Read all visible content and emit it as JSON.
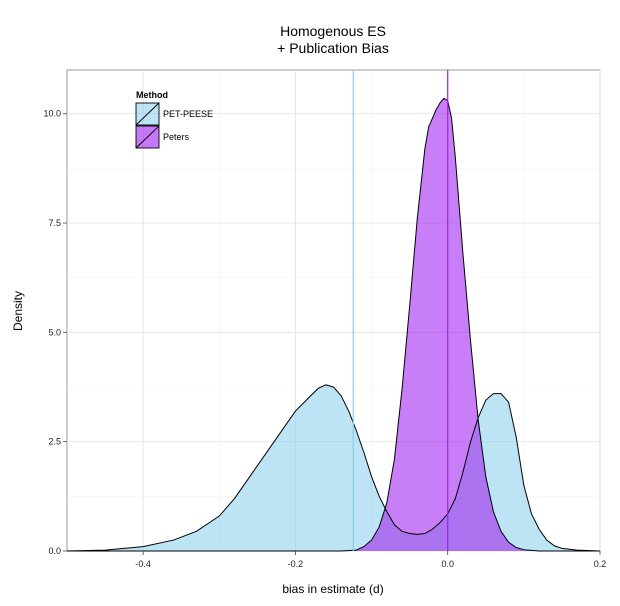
{
  "chart_data": {
    "type": "area",
    "title": "Homogenous ES\n+ Publication Bias",
    "xlabel": "bias in estimate (d)",
    "ylabel": "Density",
    "xlim": [
      -0.5,
      0.2
    ],
    "ylim": [
      0,
      11
    ],
    "x_ticks": [
      -0.4,
      -0.2,
      0.0,
      0.2
    ],
    "x_tick_labels": [
      "-0.4",
      "-0.2",
      "0.0",
      "0.2"
    ],
    "y_ticks": [
      0,
      2.5,
      5,
      7.5,
      10
    ],
    "y_tick_labels": [
      "0.0",
      "2.5",
      "5.0",
      "7.5",
      "10.0"
    ],
    "grid": true,
    "legend": {
      "title": "Method",
      "position": "top-left"
    },
    "series": [
      {
        "name": "PET-PEESE",
        "color": "#87ceeb",
        "mean_line": -0.124,
        "x": [
          -0.5,
          -0.45,
          -0.4,
          -0.36,
          -0.33,
          -0.3,
          -0.28,
          -0.26,
          -0.24,
          -0.22,
          -0.2,
          -0.18,
          -0.17,
          -0.16,
          -0.15,
          -0.14,
          -0.13,
          -0.12,
          -0.11,
          -0.1,
          -0.09,
          -0.08,
          -0.07,
          -0.06,
          -0.05,
          -0.04,
          -0.03,
          -0.02,
          -0.01,
          0.0,
          0.01,
          0.02,
          0.03,
          0.04,
          0.05,
          0.06,
          0.07,
          0.08,
          0.09,
          0.1,
          0.11,
          0.12,
          0.13,
          0.14,
          0.15,
          0.17,
          0.2
        ],
        "y": [
          0.0,
          0.02,
          0.1,
          0.25,
          0.45,
          0.8,
          1.2,
          1.7,
          2.2,
          2.7,
          3.2,
          3.55,
          3.72,
          3.8,
          3.75,
          3.55,
          3.2,
          2.75,
          2.25,
          1.7,
          1.25,
          0.9,
          0.6,
          0.45,
          0.4,
          0.38,
          0.4,
          0.5,
          0.65,
          0.85,
          1.2,
          1.8,
          2.5,
          3.05,
          3.45,
          3.6,
          3.6,
          3.4,
          2.6,
          1.5,
          0.85,
          0.5,
          0.25,
          0.12,
          0.06,
          0.02,
          0.0
        ]
      },
      {
        "name": "Peters",
        "color": "#a020f0",
        "mean_line": 0.0,
        "x": [
          -0.5,
          -0.14,
          -0.12,
          -0.11,
          -0.1,
          -0.09,
          -0.08,
          -0.07,
          -0.06,
          -0.05,
          -0.04,
          -0.03,
          -0.025,
          -0.02,
          -0.015,
          -0.01,
          -0.005,
          0.0,
          0.005,
          0.01,
          0.015,
          0.02,
          0.03,
          0.04,
          0.05,
          0.06,
          0.07,
          0.08,
          0.09,
          0.1,
          0.12,
          0.2
        ],
        "y": [
          0.0,
          0.0,
          0.02,
          0.1,
          0.25,
          0.55,
          1.1,
          2.1,
          3.7,
          5.6,
          7.6,
          9.2,
          9.7,
          9.9,
          10.1,
          10.25,
          10.35,
          10.3,
          9.9,
          9.0,
          7.9,
          6.8,
          4.8,
          3.0,
          1.7,
          0.9,
          0.45,
          0.2,
          0.08,
          0.03,
          0.0,
          0.0
        ]
      }
    ]
  }
}
